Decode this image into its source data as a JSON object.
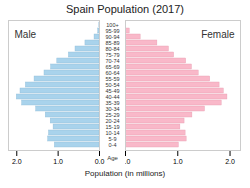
{
  "chart_data": {
    "type": "bar",
    "orientation": "horizontal",
    "title": "Spain Population (2017)",
    "xlabel": "Population (in millions)",
    "ylabel": "Age",
    "categories": [
      "0-4",
      "5-9",
      "10-14",
      "15-19",
      "20-24",
      "25-29",
      "30-34",
      "35-39",
      "40-44",
      "45-49",
      "50-54",
      "55-59",
      "60-64",
      "65-69",
      "70-74",
      "75-79",
      "80-84",
      "85-89",
      "90-94",
      "95-99",
      "100+"
    ],
    "series": [
      {
        "name": "Male",
        "color": "#a9d3ec",
        "values": [
          1.08,
          1.24,
          1.22,
          1.11,
          1.18,
          1.3,
          1.53,
          1.87,
          2.0,
          1.91,
          1.78,
          1.57,
          1.33,
          1.17,
          1.02,
          0.74,
          0.58,
          0.34,
          0.12,
          0.03,
          0.004
        ]
      },
      {
        "name": "Female",
        "color": "#f9b8c9",
        "values": [
          1.02,
          1.17,
          1.15,
          1.05,
          1.13,
          1.28,
          1.52,
          1.84,
          1.95,
          1.88,
          1.8,
          1.62,
          1.4,
          1.27,
          1.16,
          0.93,
          0.83,
          0.61,
          0.29,
          0.08,
          0.015
        ]
      }
    ],
    "xlim": [
      0,
      2.2
    ],
    "xticks": [
      0,
      1,
      2
    ],
    "grid": false
  }
}
